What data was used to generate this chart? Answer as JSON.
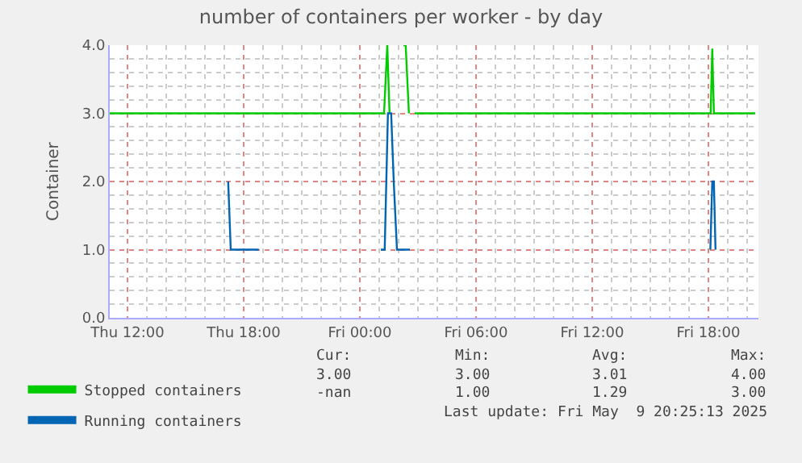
{
  "chart_data": {
    "type": "line",
    "title": "number of containers per worker - by day",
    "ylabel": "Container",
    "xlim": [
      "2025-05-08T11:05",
      "2025-05-09T20:35"
    ],
    "xticks": [
      {
        "value": "2025-05-08T12:00",
        "label": "Thu 12:00"
      },
      {
        "value": "2025-05-08T18:00",
        "label": "Thu 18:00"
      },
      {
        "value": "2025-05-09T00:00",
        "label": "Fri 00:00"
      },
      {
        "value": "2025-05-09T06:00",
        "label": "Fri 06:00"
      },
      {
        "value": "2025-05-09T12:00",
        "label": "Fri 12:00"
      },
      {
        "value": "2025-05-09T18:00",
        "label": "Fri 18:00"
      }
    ],
    "ylim": [
      0,
      4
    ],
    "yticks": [
      {
        "value": 0,
        "label": "0.0"
      },
      {
        "value": 1,
        "label": "1.0"
      },
      {
        "value": 2,
        "label": "2.0"
      },
      {
        "value": 3,
        "label": "3.0"
      },
      {
        "value": 4,
        "label": "4.0"
      }
    ],
    "grid": true,
    "legend": "bottom left",
    "marker": "none",
    "line_style": "solid",
    "series": [
      {
        "name": "Stopped containers",
        "color": "#00cc00",
        "x": [
          "2025-05-08T11:05",
          "2025-05-09T01:15",
          "2025-05-09T01:25",
          "2025-05-09T01:32",
          "2025-05-09T01:40",
          "2025-05-09T02:15",
          "2025-05-09T02:22",
          "2025-05-09T02:32",
          "2025-05-09T02:40",
          "2025-05-09T02:50",
          "2025-05-09T18:07",
          "2025-05-09T18:12",
          "2025-05-09T18:17",
          "2025-05-09T20:25"
        ],
        "values": [
          3.0,
          3.0,
          4.0,
          3.0,
          null,
          4.0,
          4.0,
          3.0,
          null,
          3.0,
          3.0,
          3.95,
          3.0,
          3.0
        ]
      },
      {
        "name": "Running containers",
        "color": "#0066b3",
        "x": [
          "2025-05-08T17:12",
          "2025-05-08T17:20",
          "2025-05-08T18:47",
          "2025-05-08T19:00",
          "2025-05-09T01:05",
          "2025-05-09T01:17",
          "2025-05-09T01:22",
          "2025-05-09T01:27",
          "2025-05-09T01:37",
          "2025-05-09T01:45",
          "2025-05-09T01:55",
          "2025-05-09T02:35",
          "2025-05-09T03:00",
          "2025-05-09T18:06",
          "2025-05-09T18:12",
          "2025-05-09T18:17",
          "2025-05-09T18:22"
        ],
        "values": [
          2.0,
          1.0,
          1.0,
          null,
          1.0,
          1.0,
          2.0,
          3.0,
          3.0,
          2.0,
          1.0,
          1.0,
          null,
          1.0,
          2.0,
          2.0,
          1.0
        ]
      }
    ],
    "annotations": [
      "Cur:",
      "Min:",
      "Avg:",
      "Max:",
      "3.00",
      "3.00",
      "3.01",
      "4.00",
      "-nan",
      "1.00",
      "1.29",
      "3.00",
      "Last update: Fri May  9 20:25:13 2025"
    ]
  }
}
